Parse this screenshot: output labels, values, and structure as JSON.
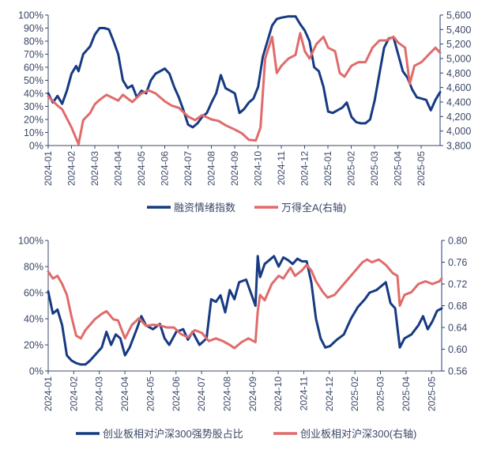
{
  "colors": {
    "navy": "#173a82",
    "salmon": "#e06b6b",
    "axis_text": "#3b4766"
  },
  "chart_data": [
    {
      "type": "line",
      "title": "",
      "xlabel": "",
      "ylabel": "",
      "x_unit": "months since 2024-01",
      "x_tick_labels": [
        "2024-01",
        "2024-02",
        "2024-03",
        "2024-04",
        "2024-05",
        "2024-06",
        "2024-07",
        "2024-08",
        "2024-09",
        "2024-10",
        "2024-11",
        "2024-12",
        "2025-01",
        "2025-02",
        "2025-03",
        "2025-04",
        "2025-05"
      ],
      "xlim": [
        0,
        16.8
      ],
      "y_left": {
        "ticks": [
          "0%",
          "10%",
          "20%",
          "30%",
          "40%",
          "50%",
          "60%",
          "70%",
          "80%",
          "90%",
          "100%"
        ],
        "range": [
          0,
          100
        ]
      },
      "y_right": {
        "ticks": [
          "3,800",
          "4,000",
          "4,200",
          "4,400",
          "4,600",
          "4,800",
          "5,000",
          "5,200",
          "5,400",
          "5,600"
        ],
        "range": [
          3800,
          5600
        ]
      },
      "grid": false,
      "legend_position": "bottom",
      "series": [
        {
          "name": "融资情绪指数",
          "axis": "left",
          "color": "#173a82",
          "x": [
            0,
            0.2,
            0.4,
            0.6,
            0.8,
            1.0,
            1.2,
            1.3,
            1.5,
            1.8,
            2.0,
            2.2,
            2.4,
            2.6,
            2.8,
            3.0,
            3.2,
            3.4,
            3.6,
            3.8,
            4.0,
            4.2,
            4.4,
            4.6,
            4.8,
            5.0,
            5.2,
            5.4,
            5.6,
            5.8,
            6.0,
            6.2,
            6.4,
            6.6,
            6.8,
            7.0,
            7.2,
            7.4,
            7.6,
            7.8,
            8.0,
            8.2,
            8.4,
            8.6,
            8.8,
            9.0,
            9.2,
            9.4,
            9.6,
            9.8,
            10.0,
            10.3,
            10.6,
            10.8,
            11.0,
            11.2,
            11.4,
            11.6,
            11.8,
            12.0,
            12.2,
            12.4,
            12.6,
            12.8,
            13.0,
            13.2,
            13.4,
            13.6,
            13.8,
            14.0,
            14.2,
            14.4,
            14.6,
            14.8,
            15.0,
            15.2,
            15.4,
            15.6,
            15.8,
            16.0,
            16.2,
            16.4,
            16.6,
            16.8
          ],
          "values": [
            40,
            33,
            38,
            32,
            42,
            55,
            61,
            57,
            70,
            76,
            85,
            90,
            90,
            89,
            80,
            70,
            50,
            44,
            46,
            37,
            42,
            40,
            50,
            55,
            57,
            59,
            55,
            45,
            37,
            27,
            16,
            14,
            17,
            22,
            25,
            33,
            40,
            54,
            44,
            42,
            40,
            25,
            28,
            33,
            36,
            45,
            68,
            80,
            92,
            97,
            98,
            99,
            99,
            93,
            88,
            80,
            60,
            57,
            45,
            26,
            25,
            27,
            29,
            33,
            22,
            18,
            17,
            17,
            20,
            35,
            55,
            75,
            82,
            83,
            70,
            57,
            52,
            43,
            37,
            36,
            35,
            27,
            35,
            41
          ]
        },
        {
          "name": "万得全A(右轴)",
          "axis": "right",
          "color": "#e06b6b",
          "x": [
            0,
            0.4,
            0.6,
            1.0,
            1.3,
            1.5,
            1.8,
            2.0,
            2.2,
            2.5,
            3.0,
            3.2,
            3.6,
            4.0,
            4.3,
            4.6,
            5.0,
            5.3,
            5.6,
            6.0,
            6.3,
            6.6,
            7.0,
            7.3,
            7.6,
            8.0,
            8.3,
            8.6,
            8.9,
            9.1,
            9.3,
            9.6,
            9.8,
            10.0,
            10.3,
            10.6,
            10.8,
            11.0,
            11.2,
            11.5,
            11.8,
            12.0,
            12.3,
            12.5,
            12.7,
            13.0,
            13.3,
            13.6,
            13.9,
            14.2,
            14.5,
            14.8,
            15.0,
            15.3,
            15.5,
            15.7,
            16.0,
            16.3,
            16.6,
            16.8
          ],
          "values": [
            4480,
            4350,
            4300,
            4050,
            3820,
            4150,
            4250,
            4370,
            4430,
            4500,
            4420,
            4500,
            4400,
            4520,
            4560,
            4520,
            4410,
            4350,
            4320,
            4200,
            4150,
            4220,
            4160,
            4140,
            4080,
            4020,
            3970,
            3880,
            3870,
            4050,
            5000,
            5300,
            4800,
            4900,
            5000,
            5050,
            5350,
            5100,
            5000,
            5200,
            5300,
            5150,
            5100,
            4800,
            4750,
            4900,
            4950,
            4950,
            5150,
            5250,
            5250,
            5300,
            5220,
            5150,
            4650,
            4900,
            4950,
            5050,
            5150,
            5080
          ]
        }
      ]
    },
    {
      "type": "line",
      "title": "",
      "xlabel": "",
      "ylabel": "",
      "x_unit": "months since 2024-01",
      "x_tick_labels": [
        "2024-01",
        "2024-02",
        "2024-03",
        "2024-04",
        "2024-05",
        "2024-06",
        "2024-07",
        "2024-08",
        "2024-09",
        "2024-10",
        "2024-11",
        "2024-12",
        "2025-02",
        "2025-03",
        "2025-04",
        "2025-05"
      ],
      "xlim": [
        0,
        15.4
      ],
      "y_left": {
        "ticks": [
          "0%",
          "20%",
          "40%",
          "60%",
          "80%",
          "100%"
        ],
        "range": [
          0,
          100
        ]
      },
      "y_right": {
        "ticks": [
          "0.56",
          "0.60",
          "0.64",
          "0.68",
          "0.72",
          "0.76",
          "0.80"
        ],
        "range": [
          0.56,
          0.8
        ]
      },
      "grid": false,
      "legend_position": "bottom",
      "series": [
        {
          "name": "创业板相对沪深300强势股占比",
          "axis": "left",
          "color": "#173a82",
          "x": [
            0,
            0.2,
            0.4,
            0.6,
            0.8,
            1.0,
            1.2,
            1.4,
            1.6,
            1.8,
            2.0,
            2.3,
            2.5,
            2.7,
            2.9,
            3.1,
            3.3,
            3.5,
            3.8,
            4.0,
            4.2,
            4.5,
            4.8,
            5.0,
            5.2,
            5.5,
            5.8,
            6.0,
            6.2,
            6.5,
            6.8,
            7.0,
            7.2,
            7.4,
            7.6,
            7.8,
            8.0,
            8.2,
            8.5,
            8.7,
            8.9,
            9.0,
            9.1,
            9.3,
            9.5,
            9.7,
            9.9,
            10.1,
            10.3,
            10.5,
            10.7,
            10.9,
            11.1,
            11.3,
            11.5,
            11.7,
            11.9,
            12.1,
            12.4,
            12.7,
            13.0,
            13.3,
            13.6,
            13.8,
            14.1,
            14.3,
            14.5,
            14.7,
            14.9,
            15.1,
            15.3,
            15.6,
            15.9,
            16.1,
            16.3,
            16.5,
            16.7,
            16.9
          ],
          "values": [
            61,
            44,
            47,
            35,
            12,
            8,
            6,
            5,
            5,
            8,
            12,
            18,
            30,
            20,
            28,
            25,
            12,
            18,
            32,
            42,
            35,
            32,
            36,
            25,
            20,
            30,
            32,
            24,
            30,
            20,
            25,
            55,
            53,
            58,
            45,
            62,
            55,
            68,
            70,
            60,
            50,
            88,
            72,
            82,
            85,
            88,
            80,
            87,
            85,
            82,
            86,
            84,
            84,
            68,
            40,
            25,
            18,
            19,
            24,
            28,
            40,
            49,
            55,
            60,
            62,
            65,
            68,
            52,
            48,
            18,
            25,
            28,
            35,
            42,
            32,
            38,
            46,
            48
          ]
        },
        {
          "name": "创业板相对沪深300(右轴)",
          "axis": "right",
          "color": "#e06b6b",
          "x": [
            0,
            0.2,
            0.4,
            0.6,
            0.8,
            1.0,
            1.2,
            1.4,
            1.6,
            1.8,
            2.0,
            2.3,
            2.5,
            2.8,
            3.0,
            3.3,
            3.6,
            3.9,
            4.2,
            4.5,
            4.8,
            5.1,
            5.4,
            5.7,
            6.0,
            6.3,
            6.6,
            6.9,
            7.2,
            7.5,
            7.8,
            8.0,
            8.3,
            8.6,
            8.9,
            9.0,
            9.1,
            9.3,
            9.6,
            9.9,
            10.1,
            10.4,
            10.6,
            10.9,
            11.1,
            11.3,
            11.5,
            11.8,
            12.0,
            12.3,
            12.6,
            12.9,
            13.2,
            13.5,
            13.7,
            13.9,
            14.2,
            14.5,
            14.8,
            15.0,
            15.1,
            15.3,
            15.6,
            15.9,
            16.2,
            16.5,
            16.8,
            16.9
          ],
          "values": [
            0.743,
            0.73,
            0.735,
            0.72,
            0.7,
            0.66,
            0.625,
            0.62,
            0.635,
            0.645,
            0.655,
            0.665,
            0.67,
            0.655,
            0.653,
            0.62,
            0.645,
            0.657,
            0.643,
            0.645,
            0.644,
            0.64,
            0.64,
            0.628,
            0.622,
            0.635,
            0.63,
            0.615,
            0.62,
            0.615,
            0.608,
            0.602,
            0.613,
            0.62,
            0.613,
            0.67,
            0.7,
            0.69,
            0.72,
            0.735,
            0.73,
            0.75,
            0.735,
            0.745,
            0.755,
            0.745,
            0.725,
            0.705,
            0.695,
            0.7,
            0.715,
            0.73,
            0.745,
            0.76,
            0.765,
            0.76,
            0.765,
            0.755,
            0.74,
            0.735,
            0.68,
            0.7,
            0.705,
            0.72,
            0.725,
            0.72,
            0.725,
            0.73
          ]
        }
      ]
    }
  ]
}
